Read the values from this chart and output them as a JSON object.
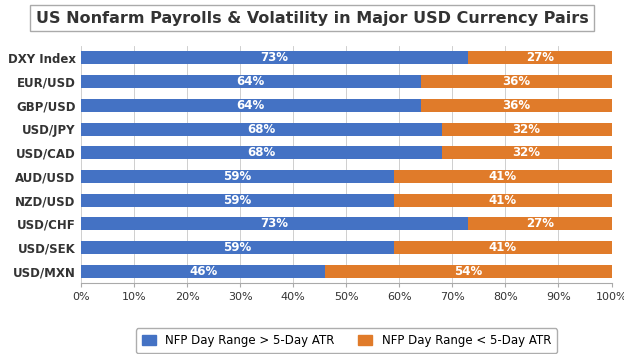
{
  "title": "US Nonfarm Payrolls & Volatility in Major USD Currency Pairs",
  "categories": [
    "DXY Index",
    "EUR/USD",
    "GBP/USD",
    "USD/JPY",
    "USD/CAD",
    "AUD/USD",
    "NZD/USD",
    "USD/CHF",
    "USD/SEK",
    "USD/MXN"
  ],
  "blue_values": [
    73,
    64,
    64,
    68,
    68,
    59,
    59,
    73,
    59,
    46
  ],
  "orange_values": [
    27,
    36,
    36,
    32,
    32,
    41,
    41,
    27,
    41,
    54
  ],
  "blue_color": "#4472C4",
  "orange_color": "#E07B2A",
  "legend_blue": "NFP Day Range > 5-Day ATR",
  "legend_orange": "NFP Day Range < 5-Day ATR",
  "xlabel_ticks": [
    0,
    10,
    20,
    30,
    40,
    50,
    60,
    70,
    80,
    90,
    100
  ],
  "background_color": "#FFFFFF",
  "title_fontsize": 11.5,
  "bar_fontsize": 8.5,
  "tick_fontsize": 8,
  "label_fontsize": 8.5
}
